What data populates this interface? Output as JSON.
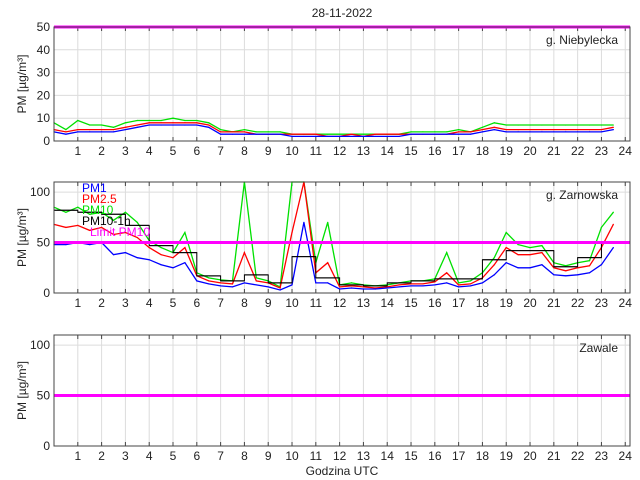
{
  "chart_data": {
    "type": "line",
    "title": "28-11-2022",
    "xlabel": "Godzina UTC",
    "ylabel": "PM [µg/m³]",
    "xlim": [
      0,
      24.2
    ],
    "xticks": [
      1,
      2,
      3,
      4,
      5,
      6,
      7,
      8,
      9,
      10,
      11,
      12,
      13,
      14,
      15,
      16,
      17,
      18,
      19,
      20,
      21,
      22,
      23,
      24
    ],
    "grid": true,
    "colors": {
      "PM1": "#0000ff",
      "PM2.5": "#ff0000",
      "PM10": "#00e000",
      "PM10-1h": "#000000",
      "Limit PM10": "#ff00ff"
    },
    "legend": {
      "placement": "top-left",
      "entries": [
        "PM1",
        "PM2.5",
        "PM10",
        "PM10-1h",
        "Limit PM10"
      ]
    },
    "limit": 50,
    "x": [
      0,
      0.5,
      1,
      1.5,
      2,
      2.5,
      3,
      3.5,
      4,
      4.5,
      5,
      5.5,
      6,
      6.5,
      7,
      7.5,
      8,
      8.5,
      9,
      9.5,
      10,
      10.5,
      11,
      11.5,
      12,
      12.5,
      13,
      13.5,
      14,
      14.5,
      15,
      15.5,
      16,
      16.5,
      17,
      17.5,
      18,
      18.5,
      19,
      19.5,
      20,
      20.5,
      21,
      21.5,
      22,
      22.5,
      23,
      23.5
    ],
    "panels": [
      {
        "station": "g. Niebylecka",
        "ylim": [
          0,
          50
        ],
        "yticks": [
          0,
          10,
          20,
          30,
          40,
          50
        ],
        "series": [
          {
            "name": "PM10",
            "values": [
              8,
              5,
              9,
              7,
              7,
              6,
              8,
              9,
              9,
              9,
              10,
              9,
              9,
              8,
              5,
              4,
              5,
              4,
              4,
              4,
              3,
              3,
              3,
              3,
              3,
              3,
              3,
              3,
              3,
              3,
              4,
              4,
              4,
              4,
              5,
              4,
              6,
              8,
              7,
              7,
              7,
              7,
              7,
              7,
              7,
              7,
              7,
              7
            ]
          },
          {
            "name": "PM2.5",
            "values": [
              5,
              4,
              5,
              5,
              5,
              5,
              6,
              7,
              8,
              8,
              8,
              8,
              8,
              7,
              4,
              4,
              4,
              3,
              3,
              3,
              3,
              3,
              3,
              2,
              2,
              3,
              2,
              3,
              3,
              3,
              3,
              3,
              3,
              3,
              4,
              4,
              5,
              6,
              5,
              5,
              5,
              5,
              5,
              5,
              5,
              5,
              5,
              6
            ]
          },
          {
            "name": "PM1",
            "values": [
              4,
              3,
              4,
              4,
              4,
              4,
              5,
              6,
              7,
              7,
              7,
              7,
              7,
              6,
              3,
              3,
              3,
              3,
              3,
              3,
              2,
              2,
              2,
              2,
              2,
              2,
              2,
              2,
              2,
              2,
              3,
              3,
              3,
              3,
              3,
              3,
              4,
              5,
              4,
              4,
              4,
              4,
              4,
              4,
              4,
              4,
              4,
              5
            ]
          }
        ]
      },
      {
        "station": "g. Zarnowska",
        "ylim": [
          0,
          110
        ],
        "yticks": [
          0,
          50,
          100
        ],
        "series": [
          {
            "name": "PM10",
            "values": [
              85,
              80,
              85,
              78,
              80,
              72,
              80,
              70,
              52,
              45,
              40,
              60,
              20,
              15,
              13,
              12,
              110,
              15,
              12,
              6,
              110,
              110,
              30,
              70,
              8,
              10,
              8,
              7,
              8,
              10,
              12,
              12,
              14,
              40,
              10,
              12,
              20,
              35,
              60,
              48,
              45,
              47,
              30,
              27,
              30,
              32,
              65,
              80
            ]
          },
          {
            "name": "PM2.5",
            "values": [
              68,
              65,
              67,
              62,
              65,
              58,
              60,
              55,
              45,
              38,
              35,
              45,
              17,
              12,
              10,
              9,
              40,
              12,
              10,
              5,
              60,
              110,
              20,
              30,
              6,
              7,
              6,
              5,
              6,
              8,
              9,
              9,
              11,
              20,
              8,
              9,
              15,
              28,
              45,
              38,
              38,
              40,
              25,
              22,
              25,
              27,
              45,
              68
            ]
          },
          {
            "name": "PM1",
            "values": [
              48,
              48,
              50,
              48,
              50,
              38,
              40,
              35,
              33,
              28,
              25,
              30,
              12,
              9,
              7,
              6,
              10,
              8,
              6,
              3,
              8,
              70,
              10,
              10,
              4,
              5,
              4,
              4,
              5,
              6,
              7,
              7,
              8,
              10,
              6,
              7,
              10,
              18,
              30,
              25,
              25,
              28,
              18,
              17,
              18,
              20,
              28,
              45
            ]
          }
        ],
        "pm10_1h": [
          82,
          80,
          78,
          67,
          47,
          40,
          17,
          12,
          18,
          10,
          36,
          15,
          8,
          7,
          10,
          12,
          14,
          14,
          33,
          42,
          42,
          26,
          35,
          50
        ]
      },
      {
        "station": "Zawale",
        "ylim": [
          0,
          110
        ],
        "yticks": [
          0,
          50,
          100
        ],
        "series": []
      }
    ]
  }
}
